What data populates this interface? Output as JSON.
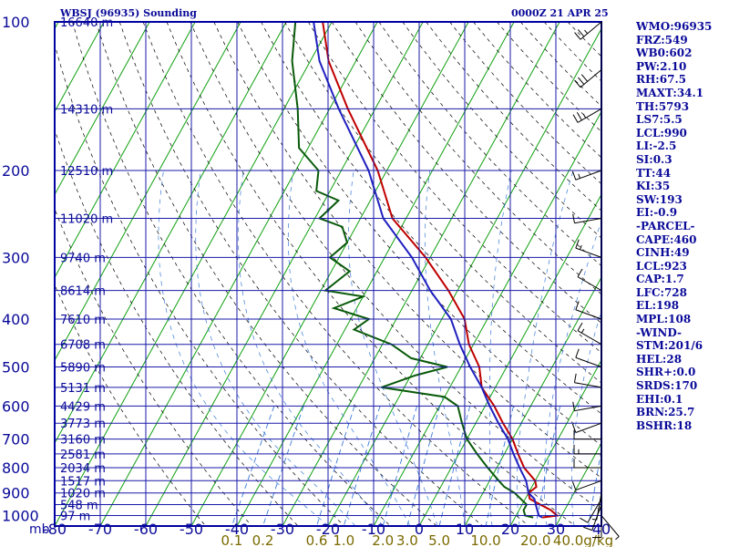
{
  "header": {
    "station": "WBSJ (96935) Sounding",
    "time": "0000Z 21 APR 25"
  },
  "indices": [
    "WMO:96935",
    "FRZ:549",
    "WB0:602",
    "PW:2.10",
    "RH:67.5",
    "MAXT:34.1",
    "TH:5793",
    "LS7:5.5",
    "LCL:990",
    "LI:-2.5",
    "SI:0.3",
    "TT:44",
    "KI:35",
    "SW:193",
    "EI:-0.9",
    "-PARCEL-",
    "CAPE:460",
    "CINH:49",
    "LCL:923",
    "CAP:1.7",
    "LFC:728",
    "EL:198",
    "MPL:108",
    "-WIND-",
    "STM:201/6",
    "HEL:28",
    "SHR+:0.0",
    "SRDS:170",
    "EHI:0.1",
    "BRN:25.7",
    "BSHR:18"
  ],
  "colors": {
    "frame": "#0000a0",
    "isobar": "#1a1aa8",
    "isotherm": "#10a010",
    "dry_adiabat": "#000000",
    "mixing_ratio": "#3a7ad8",
    "temperature": "#c00000",
    "dewpoint": "#0a5a0a",
    "parcel": "#2020c0",
    "mixing_label": "#7a6a00",
    "text": "#0a0a99"
  },
  "chart_data": {
    "type": "skew-t",
    "title": "WBSJ (96935) Sounding",
    "xlabel": "",
    "ylabel": "mb",
    "temperature_ticks": [
      -80,
      -70,
      -60,
      -50,
      -40,
      -30,
      -20,
      -10,
      0,
      10,
      20,
      30,
      40
    ],
    "temperature_tick_labels": [
      "-80",
      "-70",
      "-60",
      "-50",
      "-40",
      "-30",
      "-20",
      "-10",
      "0",
      "10",
      "20",
      "30",
      "40"
    ],
    "pressure_levels": [
      100,
      200,
      300,
      400,
      500,
      600,
      700,
      800,
      900,
      1000
    ],
    "pressure_labels": [
      "100",
      "200",
      "300",
      "400",
      "500",
      "600",
      "700",
      "800",
      "900",
      "1000"
    ],
    "height_labels": [
      {
        "p": 100,
        "text": "16640 m"
      },
      {
        "p": 150,
        "text": "14310 m"
      },
      {
        "p": 200,
        "text": "12510 m"
      },
      {
        "p": 250,
        "text": "11020 m"
      },
      {
        "p": 300,
        "text": "9740 m"
      },
      {
        "p": 350,
        "text": "8614 m"
      },
      {
        "p": 400,
        "text": "7610 m"
      },
      {
        "p": 450,
        "text": "6708 m"
      },
      {
        "p": 500,
        "text": "5890 m"
      },
      {
        "p": 550,
        "text": "5131 m"
      },
      {
        "p": 600,
        "text": "4429 m"
      },
      {
        "p": 650,
        "text": "3773 m"
      },
      {
        "p": 700,
        "text": "3160 m"
      },
      {
        "p": 750,
        "text": "2581 m"
      },
      {
        "p": 800,
        "text": "2034 m"
      },
      {
        "p": 850,
        "text": "1517 m"
      },
      {
        "p": 900,
        "text": "1020 m"
      },
      {
        "p": 950,
        "text": "548 m"
      },
      {
        "p": 1000,
        "text": "97 m"
      }
    ],
    "mixing_ratio_labels": [
      "0.1",
      "0.2",
      "0.6",
      "1.0",
      "2.0",
      "3.0",
      "5.0",
      "10.0",
      "20.0",
      "40.0g/kg"
    ],
    "mixing_ratio_values": [
      0.1,
      0.2,
      0.6,
      1.0,
      2.0,
      3.0,
      5.0,
      10.0,
      20.0,
      40.0
    ],
    "series": [
      {
        "key": "temperature",
        "points": [
          [
            1009,
            26
          ],
          [
            1000,
            29
          ],
          [
            975,
            27
          ],
          [
            950,
            24
          ],
          [
            925,
            21
          ],
          [
            900,
            20
          ],
          [
            875,
            21
          ],
          [
            850,
            20
          ],
          [
            800,
            16
          ],
          [
            750,
            13
          ],
          [
            700,
            10
          ],
          [
            650,
            6
          ],
          [
            600,
            2
          ],
          [
            550,
            -3
          ],
          [
            500,
            -6
          ],
          [
            450,
            -11
          ],
          [
            400,
            -15
          ],
          [
            350,
            -22
          ],
          [
            300,
            -31
          ],
          [
            250,
            -43
          ],
          [
            200,
            -52
          ],
          [
            150,
            -66
          ],
          [
            120,
            -76
          ],
          [
            100,
            -82
          ]
        ]
      },
      {
        "key": "dewpoint",
        "points": [
          [
            1009,
            24
          ],
          [
            1000,
            22
          ],
          [
            975,
            21
          ],
          [
            950,
            21
          ],
          [
            925,
            19
          ],
          [
            900,
            17
          ],
          [
            875,
            14
          ],
          [
            850,
            12
          ],
          [
            800,
            8
          ],
          [
            750,
            4
          ],
          [
            700,
            0
          ],
          [
            650,
            -3
          ],
          [
            600,
            -6
          ],
          [
            575,
            -10
          ],
          [
            550,
            -25
          ],
          [
            520,
            -19
          ],
          [
            500,
            -13
          ],
          [
            480,
            -22
          ],
          [
            450,
            -28
          ],
          [
            420,
            -38
          ],
          [
            400,
            -36
          ],
          [
            380,
            -45
          ],
          [
            360,
            -40
          ],
          [
            350,
            -49
          ],
          [
            320,
            -46
          ],
          [
            300,
            -52
          ],
          [
            280,
            -50
          ],
          [
            260,
            -53
          ],
          [
            250,
            -59
          ],
          [
            230,
            -57
          ],
          [
            220,
            -63
          ],
          [
            200,
            -65
          ],
          [
            180,
            -72
          ],
          [
            150,
            -77
          ],
          [
            120,
            -84
          ],
          [
            100,
            -88
          ]
        ]
      },
      {
        "key": "parcel",
        "points": [
          [
            1009,
            26
          ],
          [
            1000,
            25
          ],
          [
            975,
            24
          ],
          [
            950,
            23
          ],
          [
            925,
            22
          ],
          [
            900,
            20
          ],
          [
            850,
            18
          ],
          [
            800,
            15
          ],
          [
            750,
            12
          ],
          [
            700,
            9
          ],
          [
            650,
            5
          ],
          [
            600,
            1
          ],
          [
            550,
            -3
          ],
          [
            500,
            -8
          ],
          [
            450,
            -13
          ],
          [
            400,
            -18
          ],
          [
            350,
            -26
          ],
          [
            300,
            -34
          ],
          [
            250,
            -45
          ],
          [
            200,
            -54
          ],
          [
            150,
            -68
          ],
          [
            120,
            -78
          ],
          [
            100,
            -84
          ]
        ]
      }
    ],
    "wind_barbs": [
      {
        "p": 1000,
        "dir": 140,
        "spd": 5
      },
      {
        "p": 975,
        "dir": 180,
        "spd": 10
      },
      {
        "p": 950,
        "dir": 200,
        "spd": 10
      },
      {
        "p": 925,
        "dir": 210,
        "spd": 10
      },
      {
        "p": 900,
        "dir": 190,
        "spd": 5
      },
      {
        "p": 850,
        "dir": 250,
        "spd": 10
      },
      {
        "p": 800,
        "dir": 270,
        "spd": 10
      },
      {
        "p": 750,
        "dir": 270,
        "spd": 15
      },
      {
        "p": 700,
        "dir": 270,
        "spd": 10
      },
      {
        "p": 650,
        "dir": 250,
        "spd": 10
      },
      {
        "p": 600,
        "dir": 260,
        "spd": 10
      },
      {
        "p": 550,
        "dir": 280,
        "spd": 10
      },
      {
        "p": 500,
        "dir": 290,
        "spd": 10
      },
      {
        "p": 450,
        "dir": 300,
        "spd": 15
      },
      {
        "p": 400,
        "dir": 290,
        "spd": 10
      },
      {
        "p": 350,
        "dir": 300,
        "spd": 10
      },
      {
        "p": 300,
        "dir": 290,
        "spd": 15
      },
      {
        "p": 250,
        "dir": 260,
        "spd": 10
      },
      {
        "p": 200,
        "dir": 250,
        "spd": 15
      },
      {
        "p": 150,
        "dir": 240,
        "spd": 25
      },
      {
        "p": 125,
        "dir": 230,
        "spd": 30
      },
      {
        "p": 100,
        "dir": 230,
        "spd": 25
      }
    ]
  }
}
